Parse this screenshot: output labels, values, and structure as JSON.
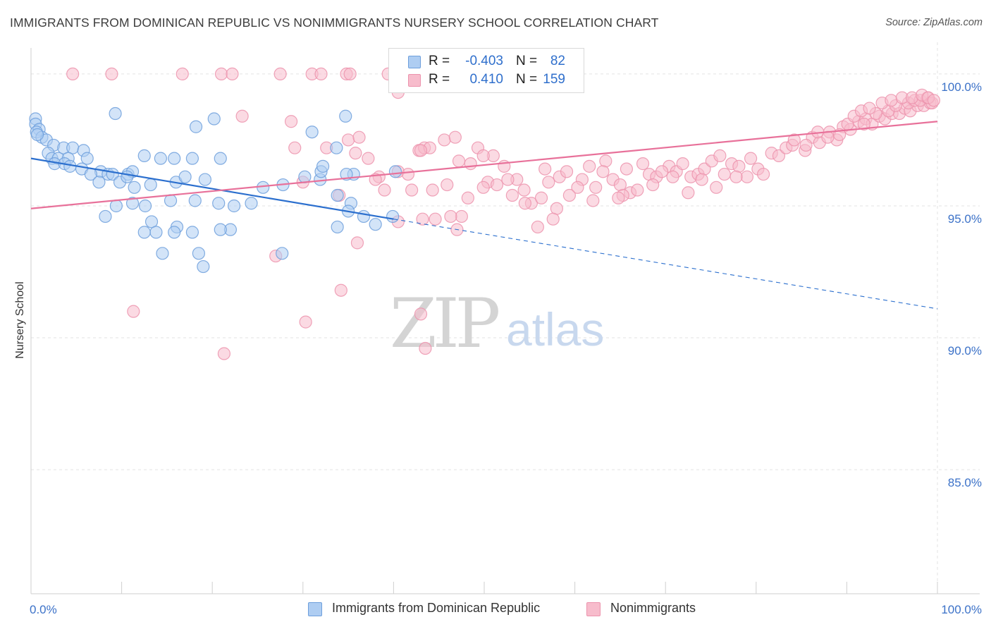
{
  "title": "IMMIGRANTS FROM DOMINICAN REPUBLIC VS NONIMMIGRANTS NURSERY SCHOOL CORRELATION CHART",
  "source": "Source: ZipAtlas.com",
  "watermark": {
    "zip": "ZIP",
    "atlas": "atlas"
  },
  "legend": {
    "r_label": "R =",
    "n_label": "N =",
    "rows": [
      {
        "r": "-0.403",
        "n": "82"
      },
      {
        "r": "0.410",
        "n": "159"
      }
    ]
  },
  "colors": {
    "blue_fill": "#aecdf2",
    "blue_stroke": "#6d9fdc",
    "blue_line": "#2b6fce",
    "pink_fill": "#f7bccc",
    "pink_stroke": "#ec93ad",
    "pink_line": "#e8719a",
    "tick_label": "#3c72c8"
  },
  "chart_data": {
    "type": "scatter",
    "xlabel": "",
    "ylabel": "Nursery School",
    "xlim": [
      0,
      100
    ],
    "ylim": [
      80.3,
      101.2
    ],
    "x_tick_labels": [
      "0.0%",
      "100.0%"
    ],
    "y_ticks": [
      85,
      90,
      95,
      100
    ],
    "y_tick_labels": [
      "85.0%",
      "90.0%",
      "95.0%",
      "100.0%"
    ],
    "grid": true,
    "series": [
      {
        "name": "Immigrants from Dominican Republic",
        "color": "blue",
        "trend": {
          "x_start": 0,
          "y_start": 96.8,
          "x_solid_end": 40,
          "y_solid_end": 94.5,
          "x_end": 100,
          "y_end": 91.1
        },
        "points": [
          [
            0.5,
            98.3
          ],
          [
            0.5,
            98.1
          ],
          [
            0.9,
            97.9
          ],
          [
            0.6,
            97.8
          ],
          [
            1.2,
            97.6
          ],
          [
            1.7,
            97.5
          ],
          [
            0.7,
            97.7
          ],
          [
            2.5,
            97.3
          ],
          [
            3.6,
            97.2
          ],
          [
            4.6,
            97.2
          ],
          [
            5.8,
            97.1
          ],
          [
            1.9,
            97.0
          ],
          [
            2.3,
            96.8
          ],
          [
            3.0,
            96.8
          ],
          [
            4.1,
            96.8
          ],
          [
            6.2,
            96.8
          ],
          [
            2.6,
            96.6
          ],
          [
            3.7,
            96.6
          ],
          [
            4.3,
            96.5
          ],
          [
            5.6,
            96.4
          ],
          [
            7.7,
            96.3
          ],
          [
            8.5,
            96.2
          ],
          [
            9.0,
            96.2
          ],
          [
            10.7,
            96.2
          ],
          [
            11.2,
            96.3
          ],
          [
            6.6,
            96.2
          ],
          [
            9.8,
            95.9
          ],
          [
            7.5,
            95.9
          ],
          [
            12.5,
            96.9
          ],
          [
            14.3,
            96.8
          ],
          [
            15.8,
            96.8
          ],
          [
            17.8,
            96.8
          ],
          [
            20.9,
            96.8
          ],
          [
            13.2,
            95.8
          ],
          [
            16.0,
            95.9
          ],
          [
            17.0,
            96.1
          ],
          [
            11.4,
            95.7
          ],
          [
            10.6,
            96.1
          ],
          [
            8.2,
            94.6
          ],
          [
            13.3,
            94.4
          ],
          [
            15.4,
            95.2
          ],
          [
            18.1,
            95.2
          ],
          [
            19.2,
            96.0
          ],
          [
            20.7,
            95.1
          ],
          [
            22.4,
            95.0
          ],
          [
            24.3,
            95.1
          ],
          [
            25.6,
            95.7
          ],
          [
            9.4,
            95.0
          ],
          [
            11.2,
            95.1
          ],
          [
            12.6,
            95.0
          ],
          [
            13.8,
            94.0
          ],
          [
            12.5,
            94.0
          ],
          [
            16.1,
            94.2
          ],
          [
            15.8,
            94.0
          ],
          [
            17.8,
            94.0
          ],
          [
            22.0,
            94.1
          ],
          [
            20.9,
            94.1
          ],
          [
            18.5,
            93.2
          ],
          [
            19.0,
            92.7
          ],
          [
            14.5,
            93.2
          ],
          [
            27.7,
            93.2
          ],
          [
            27.8,
            95.8
          ],
          [
            31.9,
            96.0
          ],
          [
            30.2,
            96.1
          ],
          [
            32.0,
            96.3
          ],
          [
            33.8,
            95.4
          ],
          [
            33.8,
            94.2
          ],
          [
            35.6,
            96.2
          ],
          [
            35.3,
            95.1
          ],
          [
            36.7,
            94.6
          ],
          [
            38.0,
            94.3
          ],
          [
            35.0,
            94.8
          ],
          [
            39.9,
            94.6
          ],
          [
            32.2,
            96.5
          ],
          [
            34.8,
            96.2
          ],
          [
            40.2,
            96.3
          ],
          [
            33.7,
            97.2
          ],
          [
            31.0,
            97.8
          ],
          [
            34.7,
            98.4
          ],
          [
            18.2,
            98.0
          ],
          [
            20.2,
            98.3
          ],
          [
            9.3,
            98.5
          ]
        ]
      },
      {
        "name": "Nonimmigrants",
        "color": "pink",
        "trend": {
          "x_start": 0,
          "y_start": 94.9,
          "x_end": 100,
          "y_end": 98.2
        },
        "points": [
          [
            4.6,
            100.0
          ],
          [
            8.9,
            100.0
          ],
          [
            16.7,
            100.0
          ],
          [
            21.0,
            100.0
          ],
          [
            22.2,
            100.0
          ],
          [
            27.5,
            100.0
          ],
          [
            31.0,
            100.0
          ],
          [
            32.0,
            100.0
          ],
          [
            34.8,
            100.0
          ],
          [
            35.2,
            100.0
          ],
          [
            39.4,
            100.0
          ],
          [
            40.5,
            99.3
          ],
          [
            23.3,
            98.4
          ],
          [
            28.7,
            98.2
          ],
          [
            32.6,
            97.2
          ],
          [
            35.0,
            97.5
          ],
          [
            29.1,
            97.2
          ],
          [
            35.8,
            97.0
          ],
          [
            37.2,
            96.8
          ],
          [
            36.2,
            97.6
          ],
          [
            38.4,
            96.1
          ],
          [
            39.0,
            95.6
          ],
          [
            40.5,
            96.3
          ],
          [
            41.6,
            96.2
          ],
          [
            42.8,
            97.1
          ],
          [
            43.4,
            97.2
          ],
          [
            44.0,
            97.2
          ],
          [
            45.6,
            97.5
          ],
          [
            46.8,
            97.6
          ],
          [
            47.2,
            96.7
          ],
          [
            48.5,
            96.6
          ],
          [
            49.3,
            97.2
          ],
          [
            50.4,
            95.9
          ],
          [
            49.9,
            95.7
          ],
          [
            51.4,
            95.8
          ],
          [
            52.2,
            96.5
          ],
          [
            53.6,
            96.0
          ],
          [
            54.4,
            95.6
          ],
          [
            55.2,
            95.1
          ],
          [
            56.7,
            96.4
          ],
          [
            57.1,
            95.9
          ],
          [
            58.3,
            96.1
          ],
          [
            59.1,
            96.3
          ],
          [
            60.8,
            96.0
          ],
          [
            61.6,
            96.5
          ],
          [
            62.3,
            95.7
          ],
          [
            63.4,
            96.7
          ],
          [
            64.2,
            96.0
          ],
          [
            65.0,
            95.8
          ],
          [
            65.7,
            96.4
          ],
          [
            66.1,
            95.5
          ],
          [
            67.5,
            96.6
          ],
          [
            68.2,
            96.2
          ],
          [
            69.0,
            96.1
          ],
          [
            70.4,
            96.5
          ],
          [
            71.2,
            96.3
          ],
          [
            71.9,
            96.6
          ],
          [
            72.8,
            96.1
          ],
          [
            73.6,
            96.2
          ],
          [
            74.3,
            96.4
          ],
          [
            75.1,
            96.7
          ],
          [
            76.5,
            96.2
          ],
          [
            77.3,
            96.6
          ],
          [
            78.1,
            96.5
          ],
          [
            79.4,
            96.8
          ],
          [
            80.2,
            96.4
          ],
          [
            81.7,
            97.0
          ],
          [
            82.5,
            96.9
          ],
          [
            83.3,
            97.2
          ],
          [
            84.0,
            97.3
          ],
          [
            85.4,
            97.1
          ],
          [
            86.2,
            97.6
          ],
          [
            87.0,
            97.4
          ],
          [
            88.1,
            97.8
          ],
          [
            88.9,
            97.5
          ],
          [
            89.6,
            98.0
          ],
          [
            90.4,
            97.9
          ],
          [
            91.3,
            98.2
          ],
          [
            92.1,
            98.3
          ],
          [
            92.8,
            98.1
          ],
          [
            93.6,
            98.4
          ],
          [
            94.2,
            98.3
          ],
          [
            95.0,
            98.5
          ],
          [
            95.8,
            98.5
          ],
          [
            96.4,
            98.7
          ],
          [
            97.0,
            98.6
          ],
          [
            97.8,
            98.8
          ],
          [
            98.5,
            98.8
          ],
          [
            99.2,
            98.9
          ],
          [
            84.2,
            97.5
          ],
          [
            85.5,
            97.3
          ],
          [
            86.8,
            97.8
          ],
          [
            87.9,
            97.6
          ],
          [
            89.2,
            97.7
          ],
          [
            90.1,
            98.1
          ],
          [
            91.9,
            98.1
          ],
          [
            93.2,
            98.5
          ],
          [
            94.6,
            98.6
          ],
          [
            95.4,
            98.8
          ],
          [
            96.8,
            98.9
          ],
          [
            97.5,
            99.0
          ],
          [
            98.1,
            99.0
          ],
          [
            98.9,
            99.1
          ],
          [
            99.4,
            98.9
          ],
          [
            90.8,
            98.4
          ],
          [
            91.6,
            98.6
          ],
          [
            92.5,
            98.7
          ],
          [
            93.9,
            98.9
          ],
          [
            94.9,
            99.0
          ],
          [
            96.1,
            99.1
          ],
          [
            97.2,
            99.1
          ],
          [
            98.3,
            99.2
          ],
          [
            99.0,
            99.1
          ],
          [
            99.6,
            99.0
          ],
          [
            80.8,
            96.2
          ],
          [
            79.0,
            96.1
          ],
          [
            77.8,
            96.1
          ],
          [
            76.0,
            96.9
          ],
          [
            75.6,
            95.7
          ],
          [
            74.0,
            96.0
          ],
          [
            72.5,
            95.5
          ],
          [
            70.8,
            96.1
          ],
          [
            69.6,
            96.3
          ],
          [
            68.6,
            95.8
          ],
          [
            66.9,
            95.6
          ],
          [
            65.3,
            95.4
          ],
          [
            64.8,
            95.3
          ],
          [
            63.1,
            96.3
          ],
          [
            62.0,
            95.2
          ],
          [
            60.3,
            95.7
          ],
          [
            59.4,
            95.4
          ],
          [
            58.0,
            94.9
          ],
          [
            57.6,
            94.5
          ],
          [
            56.3,
            95.3
          ],
          [
            55.9,
            94.2
          ],
          [
            54.5,
            95.1
          ],
          [
            53.1,
            95.4
          ],
          [
            52.6,
            96.0
          ],
          [
            51.0,
            96.9
          ],
          [
            49.9,
            96.9
          ],
          [
            48.2,
            95.3
          ],
          [
            47.5,
            94.6
          ],
          [
            47.0,
            94.1
          ],
          [
            46.3,
            94.6
          ],
          [
            44.3,
            95.6
          ],
          [
            42.0,
            95.6
          ],
          [
            40.5,
            94.4
          ],
          [
            36.0,
            93.6
          ],
          [
            27.0,
            93.1
          ],
          [
            34.0,
            95.4
          ],
          [
            30.0,
            95.9
          ],
          [
            38.0,
            96.0
          ],
          [
            43.0,
            97.1
          ],
          [
            44.6,
            94.5
          ],
          [
            45.9,
            95.8
          ],
          [
            43.2,
            94.5
          ],
          [
            11.3,
            91.0
          ],
          [
            21.3,
            89.4
          ],
          [
            30.3,
            90.6
          ],
          [
            34.2,
            91.8
          ],
          [
            43.0,
            90.9
          ],
          [
            43.5,
            89.6
          ]
        ]
      }
    ]
  }
}
